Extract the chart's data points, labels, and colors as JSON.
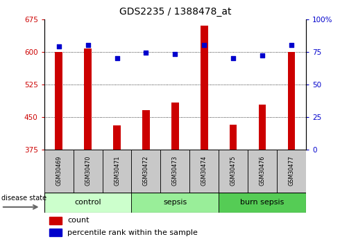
{
  "title": "GDS2235 / 1388478_at",
  "samples": [
    "GSM30469",
    "GSM30470",
    "GSM30471",
    "GSM30472",
    "GSM30473",
    "GSM30474",
    "GSM30475",
    "GSM30476",
    "GSM30477"
  ],
  "count_values": [
    600,
    607,
    430,
    465,
    483,
    660,
    432,
    478,
    600
  ],
  "percentile_values": [
    79,
    80,
    70,
    74,
    73,
    80,
    70,
    72,
    80
  ],
  "groups": [
    {
      "label": "control",
      "indices": [
        0,
        1,
        2
      ]
    },
    {
      "label": "sepsis",
      "indices": [
        3,
        4,
        5
      ]
    },
    {
      "label": "burn sepsis",
      "indices": [
        6,
        7,
        8
      ]
    }
  ],
  "group_colors": [
    "#ccffcc",
    "#99ee99",
    "#55cc55"
  ],
  "ylim_left": [
    375,
    675
  ],
  "ylim_right": [
    0,
    100
  ],
  "yticks_left": [
    375,
    450,
    525,
    600,
    675
  ],
  "yticks_right": [
    0,
    25,
    50,
    75,
    100
  ],
  "bar_color": "#cc0000",
  "dot_color": "#0000cc",
  "tick_label_color_left": "#cc0000",
  "tick_label_color_right": "#0000cc",
  "grid_color": "#000000",
  "legend_count_label": "count",
  "legend_pct_label": "percentile rank within the sample",
  "xlabel_disease": "disease state"
}
